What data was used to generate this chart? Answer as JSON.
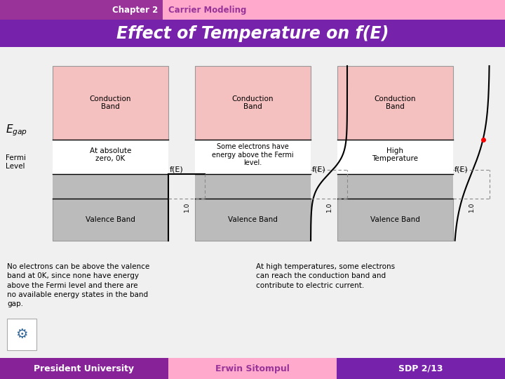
{
  "title": "Effect of Temperature on f(E)",
  "header_left": "Chapter 2",
  "header_right": "Carrier Modeling",
  "footer_left": "President University",
  "footer_center": "Erwin Sitompul",
  "footer_right": "SDP 2/13",
  "bg_color": "#f0f0f0",
  "header_left_bg": "#993399",
  "header_right_bg": "#ffaacc",
  "title_bg": "#7722aa",
  "footer_left_bg": "#882299",
  "footer_center_bg": "#ffaacc",
  "footer_right_bg": "#7722aa",
  "conduction_band_color": "#f5c0c0",
  "valence_band_color": "#bbbbbb",
  "white_color": "#ffffff",
  "panel1_label": "At absolute\nzero, 0K",
  "panel2_label": "Some electrons have\nenergy above the Fermi\nlevel.",
  "panel3_label": "High\nTemperature",
  "note1": "No electrons can be above the valence\nband at 0K, since none have energy\nabove the Fermi level and there are\nno available energy states in the band\ngap.",
  "note2": "At high temperatures, some electrons\ncan reach the conduction band and\ncontribute to electric current."
}
